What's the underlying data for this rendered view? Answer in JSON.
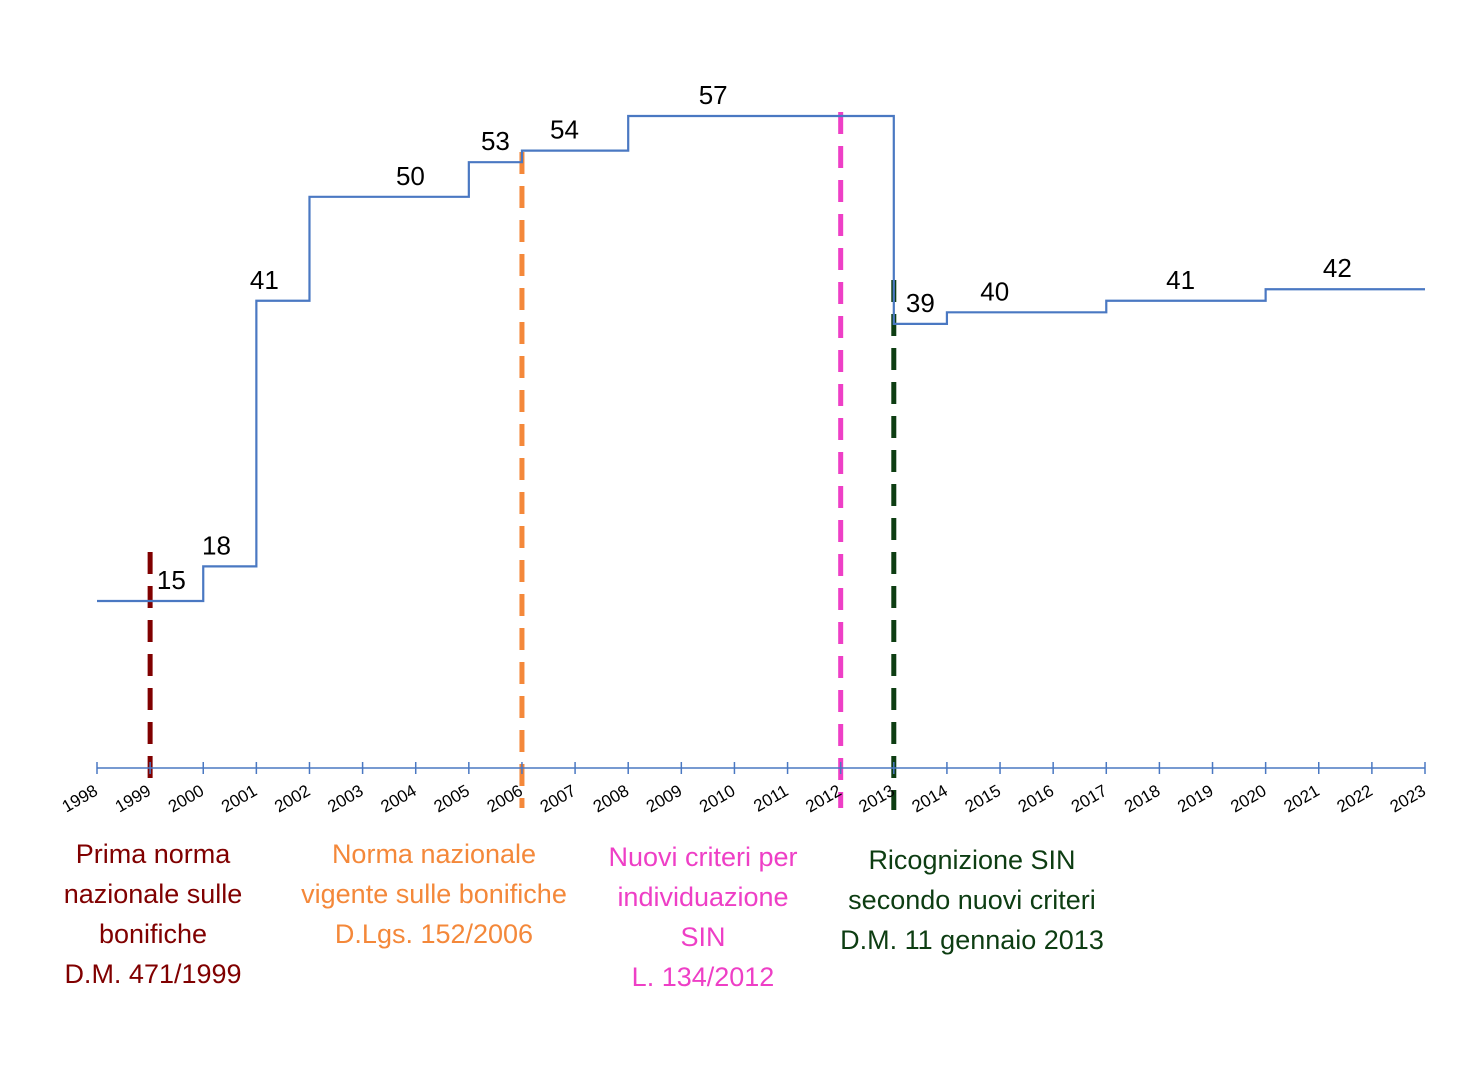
{
  "chart_data": {
    "type": "line",
    "step": true,
    "title": "",
    "xlabel": "",
    "ylabel": "",
    "x": [
      1998,
      1999,
      2000,
      2001,
      2002,
      2003,
      2004,
      2005,
      2006,
      2007,
      2008,
      2009,
      2010,
      2011,
      2012,
      2013,
      2014,
      2015,
      2016,
      2017,
      2018,
      2019,
      2020,
      2021,
      2022,
      2023
    ],
    "x_range": [
      1998,
      2023
    ],
    "tick_labels": [
      "1998",
      "1999",
      "2000",
      "2001",
      "2002",
      "2003",
      "2004",
      "2005",
      "2006",
      "2007",
      "2008",
      "2009",
      "2010",
      "2011",
      "2012",
      "2013",
      "2014",
      "2015",
      "2016",
      "2017",
      "2018",
      "2019",
      "2020",
      "2021",
      "2022",
      "2023"
    ],
    "y_range": [
      0,
      60
    ],
    "grid": false,
    "series": [
      {
        "color": "#4a78c2",
        "steps": [
          {
            "from": 1998,
            "to": 2000,
            "value": 15
          },
          {
            "from": 2000,
            "to": 2001,
            "value": 18
          },
          {
            "from": 2001,
            "to": 2002,
            "value": 41
          },
          {
            "from": 2002,
            "to": 2005,
            "value": 50
          },
          {
            "from": 2005,
            "to": 2006,
            "value": 53
          },
          {
            "from": 2006,
            "to": 2008,
            "value": 54
          },
          {
            "from": 2008,
            "to": 2013,
            "value": 57
          },
          {
            "from": 2013,
            "to": 2014,
            "value": 39
          },
          {
            "from": 2014,
            "to": 2017,
            "value": 40
          },
          {
            "from": 2017,
            "to": 2020,
            "value": 41
          },
          {
            "from": 2020,
            "to": 2023,
            "value": 42
          }
        ]
      }
    ],
    "value_labels": [
      {
        "x": 1999.4,
        "y": 15,
        "text": "15"
      },
      {
        "x": 2000.25,
        "y": 18,
        "text": "18"
      },
      {
        "x": 2001.15,
        "y": 41,
        "text": "41"
      },
      {
        "x": 2003.9,
        "y": 50,
        "text": "50"
      },
      {
        "x": 2005.5,
        "y": 53,
        "text": "53"
      },
      {
        "x": 2006.8,
        "y": 54,
        "text": "54"
      },
      {
        "x": 2009.6,
        "y": 57,
        "text": "57"
      },
      {
        "x": 2013.5,
        "y": 39,
        "text": "39"
      },
      {
        "x": 2014.9,
        "y": 40,
        "text": "40"
      },
      {
        "x": 2018.4,
        "y": 41,
        "text": "41"
      },
      {
        "x": 2021.35,
        "y": 42,
        "text": "42"
      }
    ],
    "annotations": [
      {
        "x": 1999,
        "color": "#800000",
        "lines": [
          "Prima norma",
          "nazionale sulle",
          "bonifiche",
          "D.M. 471/1999"
        ]
      },
      {
        "x": 2006,
        "color": "#f4883a",
        "lines": [
          "Norma nazionale",
          "vigente sulle bonifiche",
          "D.Lgs. 152/2006"
        ]
      },
      {
        "x": 2012,
        "color": "#ee3fc6",
        "lines": [
          "Nuovi criteri per",
          "individuazione",
          "SIN",
          "L. 134/2012"
        ]
      },
      {
        "x": 2013,
        "color": "#0d3d12",
        "lines": [
          "Ricognizione SIN",
          "secondo nuovi criteri",
          "D.M. 11 gennaio 2013"
        ]
      }
    ]
  }
}
